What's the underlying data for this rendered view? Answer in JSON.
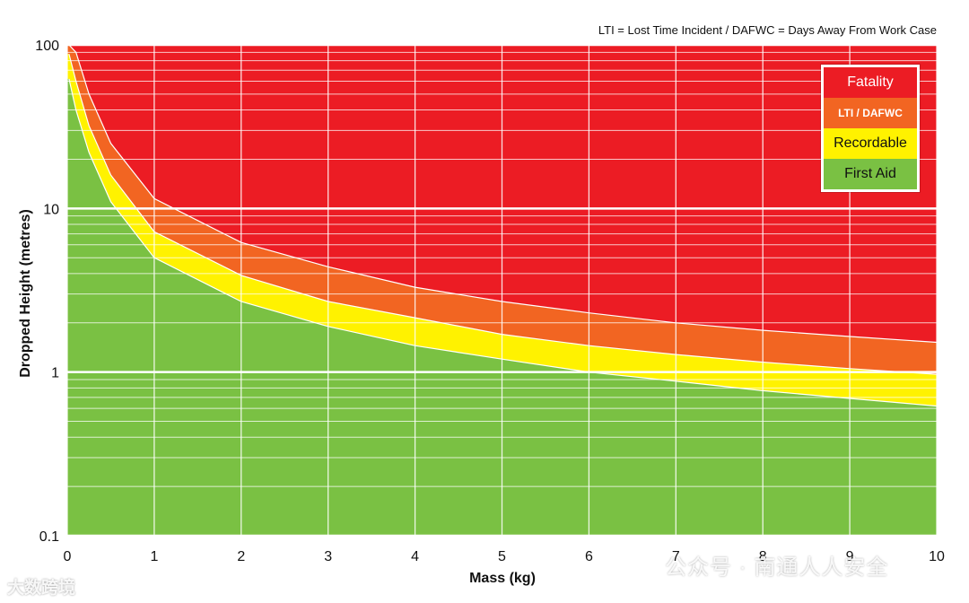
{
  "note": "LTI = Lost Time Incident / DAFWC = Days Away From Work Case",
  "chart_data": {
    "type": "area",
    "xlabel": "Mass (kg)",
    "ylabel": "Dropped Height (metres)",
    "xlim": [
      0,
      10
    ],
    "ylim": [
      0.1,
      100
    ],
    "yscale": "log",
    "x_ticks": [
      "0",
      "1",
      "2",
      "3",
      "4",
      "5",
      "6",
      "7",
      "8",
      "9",
      "10"
    ],
    "y_ticks": [
      "0.1",
      "1",
      "10",
      "100"
    ],
    "grid": true,
    "legend_position": "top-right",
    "series": [
      {
        "name": "Fatality",
        "color": "#ec1c24",
        "x": [
          0.02,
          0.1,
          0.25,
          0.5,
          1,
          2,
          3,
          4,
          5,
          6,
          7,
          8,
          9,
          10
        ],
        "upper_boundary": [
          100,
          100,
          100,
          100,
          100,
          100,
          100,
          100,
          100,
          100,
          100,
          100,
          100,
          100
        ]
      },
      {
        "name": "LTI / DAFWC",
        "color": "#f26522",
        "x": [
          0.02,
          0.1,
          0.25,
          0.5,
          1,
          2,
          3,
          4,
          5,
          6,
          7,
          8,
          9,
          10
        ],
        "upper_boundary": [
          100,
          90,
          50,
          25,
          11.5,
          6.2,
          4.4,
          3.3,
          2.7,
          2.3,
          2.0,
          1.8,
          1.65,
          1.52
        ]
      },
      {
        "name": "Recordable",
        "color": "#fff200",
        "x": [
          0.02,
          0.1,
          0.25,
          0.5,
          1,
          2,
          3,
          4,
          5,
          6,
          7,
          8,
          9,
          10
        ],
        "upper_boundary": [
          88,
          60,
          32,
          16,
          7.2,
          3.9,
          2.7,
          2.15,
          1.7,
          1.45,
          1.28,
          1.15,
          1.05,
          0.97
        ]
      },
      {
        "name": "First Aid",
        "color": "#7ac143",
        "x": [
          0.02,
          0.1,
          0.25,
          0.5,
          1,
          2,
          3,
          4,
          5,
          6,
          7,
          8,
          9,
          10
        ],
        "upper_boundary": [
          62,
          40,
          22,
          11,
          5.0,
          2.7,
          1.9,
          1.45,
          1.2,
          1.0,
          0.88,
          0.77,
          0.69,
          0.62
        ]
      }
    ]
  },
  "watermark_right": "公众号 · 南通人人安全",
  "watermark_left": "大数跨境"
}
